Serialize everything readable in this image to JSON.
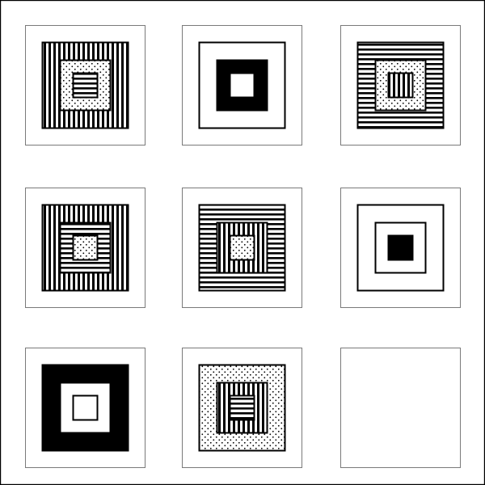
{
  "puzzle": {
    "rows": 3,
    "cols": 3,
    "cells": [
      {
        "id": "r1c1",
        "layers": [
          "vertical-stripes",
          "dotted",
          "horizontal-stripes"
        ]
      },
      {
        "id": "r1c2",
        "layers": [
          "white",
          "solid-black",
          "white"
        ]
      },
      {
        "id": "r1c3",
        "layers": [
          "horizontal-stripes",
          "dotted",
          "vertical-stripes"
        ]
      },
      {
        "id": "r2c1",
        "layers": [
          "vertical-stripes",
          "horizontal-stripes",
          "dotted"
        ]
      },
      {
        "id": "r2c2",
        "layers": [
          "horizontal-stripes",
          "vertical-stripes",
          "dotted"
        ]
      },
      {
        "id": "r2c3",
        "layers": [
          "white",
          "white",
          "solid-black"
        ]
      },
      {
        "id": "r3c1",
        "layers": [
          "solid-black",
          "white",
          "white"
        ]
      },
      {
        "id": "r3c2",
        "layers": [
          "dotted",
          "vertical-stripes",
          "horizontal-stripes"
        ]
      },
      {
        "id": "r3c3",
        "layers": [],
        "missing": true
      }
    ]
  },
  "colors": {
    "ink": "#000000",
    "paper": "#ffffff",
    "card_border": "#7a7a7a"
  }
}
